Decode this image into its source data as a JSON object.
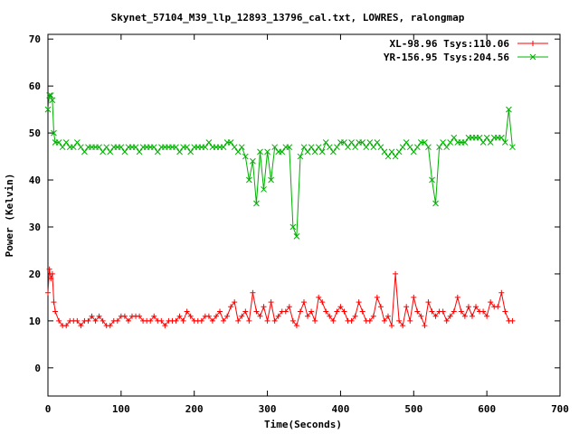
{
  "chart_data": {
    "type": "line",
    "title": "Skynet_57104_M39_llp_12893_13796_cal.txt, LOWRES, ralongmap",
    "xlabel": "Time(Seconds)",
    "ylabel": "Power (Kelvin)",
    "xlim": [
      0,
      700
    ],
    "ylim": [
      -6,
      71
    ],
    "x_ticks": [
      "0",
      "100",
      "200",
      "300",
      "400",
      "500",
      "600",
      "700"
    ],
    "y_ticks": [
      "0",
      "10",
      "20",
      "30",
      "40",
      "50",
      "60",
      "70"
    ],
    "legend_position": "top-right",
    "grid": false,
    "series": [
      {
        "name": "XL-98.96 Tsys:110.06",
        "color": "#ff0000",
        "marker": "plus",
        "x": [
          0,
          2,
          4,
          6,
          8,
          10,
          15,
          20,
          25,
          30,
          35,
          40,
          45,
          50,
          55,
          60,
          65,
          70,
          75,
          80,
          85,
          90,
          95,
          100,
          105,
          110,
          115,
          120,
          125,
          130,
          135,
          140,
          145,
          150,
          155,
          160,
          165,
          170,
          175,
          180,
          185,
          190,
          195,
          200,
          205,
          210,
          215,
          220,
          225,
          230,
          235,
          240,
          245,
          250,
          255,
          260,
          265,
          270,
          275,
          280,
          285,
          290,
          295,
          300,
          305,
          310,
          315,
          320,
          325,
          330,
          335,
          340,
          345,
          350,
          355,
          360,
          365,
          370,
          375,
          380,
          385,
          390,
          395,
          400,
          405,
          410,
          415,
          420,
          425,
          430,
          435,
          440,
          445,
          450,
          455,
          460,
          465,
          470,
          475,
          480,
          485,
          490,
          495,
          500,
          505,
          510,
          515,
          520,
          525,
          530,
          535,
          540,
          545,
          550,
          555,
          560,
          565,
          570,
          575,
          580,
          585,
          590,
          595,
          600,
          605,
          610,
          615,
          620,
          625,
          630,
          635
        ],
        "y": [
          16,
          21,
          19,
          20,
          14,
          12,
          10,
          9,
          9,
          10,
          10,
          10,
          9,
          10,
          10,
          11,
          10,
          11,
          10,
          9,
          9,
          10,
          10,
          11,
          11,
          10,
          11,
          11,
          11,
          10,
          10,
          10,
          11,
          10,
          10,
          9,
          10,
          10,
          10,
          11,
          10,
          12,
          11,
          10,
          10,
          10,
          11,
          11,
          10,
          11,
          12,
          10,
          11,
          13,
          14,
          10,
          11,
          12,
          10,
          16,
          12,
          11,
          13,
          10,
          14,
          10,
          11,
          12,
          12,
          13,
          10,
          9,
          12,
          14,
          11,
          12,
          10,
          15,
          14,
          12,
          11,
          10,
          12,
          13,
          12,
          10,
          10,
          11,
          14,
          12,
          10,
          10,
          11,
          15,
          13,
          10,
          11,
          9,
          20,
          10,
          9,
          13,
          10,
          15,
          12,
          11,
          9,
          14,
          12,
          11,
          12,
          12,
          10,
          11,
          12,
          15,
          12,
          11,
          13,
          11,
          13,
          12,
          12,
          11,
          14,
          13,
          13,
          16,
          12,
          10,
          10
        ]
      },
      {
        "name": "YR-156.95 Tsys:204.56",
        "color": "#00b000",
        "marker": "cross",
        "x": [
          0,
          2,
          4,
          6,
          8,
          10,
          15,
          20,
          25,
          30,
          35,
          40,
          45,
          50,
          55,
          60,
          65,
          70,
          75,
          80,
          85,
          90,
          95,
          100,
          105,
          110,
          115,
          120,
          125,
          130,
          135,
          140,
          145,
          150,
          155,
          160,
          165,
          170,
          175,
          180,
          185,
          190,
          195,
          200,
          205,
          210,
          215,
          220,
          225,
          230,
          235,
          240,
          245,
          250,
          255,
          260,
          265,
          270,
          275,
          280,
          285,
          290,
          295,
          300,
          305,
          310,
          315,
          320,
          325,
          330,
          335,
          340,
          345,
          350,
          355,
          360,
          365,
          370,
          375,
          380,
          385,
          390,
          395,
          400,
          405,
          410,
          415,
          420,
          425,
          430,
          435,
          440,
          445,
          450,
          455,
          460,
          465,
          470,
          475,
          480,
          485,
          490,
          495,
          500,
          505,
          510,
          515,
          520,
          525,
          530,
          535,
          540,
          545,
          550,
          555,
          560,
          565,
          570,
          575,
          580,
          585,
          590,
          595,
          600,
          605,
          610,
          615,
          620,
          625,
          630,
          635
        ],
        "y": [
          55,
          58,
          58,
          57,
          50,
          48,
          48,
          47,
          48,
          47,
          47,
          48,
          47,
          46,
          47,
          47,
          47,
          47,
          46,
          47,
          46,
          47,
          47,
          47,
          46,
          47,
          47,
          47,
          46,
          47,
          47,
          47,
          47,
          46,
          47,
          47,
          47,
          47,
          47,
          46,
          47,
          47,
          46,
          47,
          47,
          47,
          47,
          48,
          47,
          47,
          47,
          47,
          48,
          48,
          47,
          46,
          47,
          45,
          40,
          44,
          35,
          46,
          38,
          46,
          40,
          47,
          46,
          46,
          47,
          47,
          30,
          28,
          45,
          47,
          46,
          47,
          46,
          47,
          46,
          48,
          47,
          46,
          47,
          48,
          48,
          47,
          48,
          47,
          48,
          48,
          47,
          48,
          47,
          48,
          47,
          46,
          45,
          46,
          45,
          46,
          47,
          48,
          47,
          46,
          47,
          48,
          48,
          47,
          40,
          35,
          47,
          48,
          47,
          48,
          49,
          48,
          48,
          48,
          49,
          49,
          49,
          49,
          48,
          49,
          48,
          49,
          49,
          49,
          48,
          55,
          47
        ]
      }
    ]
  }
}
